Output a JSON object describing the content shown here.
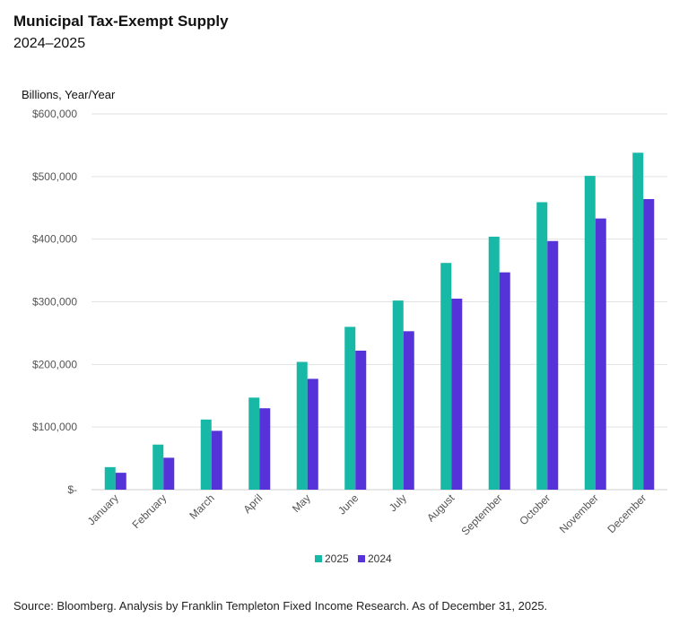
{
  "header": {
    "title": "Municipal Tax-Exempt Supply",
    "subtitle": "2024–2025"
  },
  "footer": {
    "source": "Source: Bloomberg. Analysis by Franklin Templeton Fixed Income Research. As of December 31, 2025."
  },
  "chart_data": {
    "type": "bar",
    "title": "Municipal Tax-Exempt Supply",
    "subtitle": "2024–2025",
    "ylabel": "Billions, Year/Year",
    "xlabel": "",
    "ylim": [
      0,
      600000
    ],
    "yticks": [
      0,
      100000,
      200000,
      300000,
      400000,
      500000,
      600000
    ],
    "ytick_labels": [
      "$-",
      "$100,000",
      "$200,000",
      "$300,000",
      "$400,000",
      "$500,000",
      "$600,000"
    ],
    "grid": true,
    "legend_position": "bottom-center",
    "categories": [
      "January",
      "February",
      "March",
      "April",
      "May",
      "June",
      "July",
      "August",
      "September",
      "October",
      "November",
      "December"
    ],
    "series": [
      {
        "name": "2025",
        "color": "#17b8a6",
        "values": [
          36000,
          72000,
          112000,
          147000,
          204000,
          260000,
          302000,
          362000,
          404000,
          459000,
          501000,
          538000
        ]
      },
      {
        "name": "2024",
        "color": "#5533d9",
        "values": [
          27000,
          51000,
          94000,
          130000,
          177000,
          222000,
          253000,
          305000,
          347000,
          397000,
          433000,
          464000
        ]
      }
    ]
  }
}
